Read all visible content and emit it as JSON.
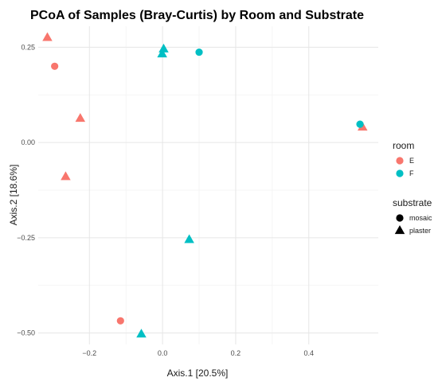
{
  "chart_data": {
    "type": "scatter",
    "title": "PCoA of Samples (Bray-Curtis) by Room and Substrate",
    "xlabel": "Axis.1   [20.5%]",
    "ylabel": "Axis.2   [18.6%]",
    "xlim": [
      -0.34,
      0.59
    ],
    "ylim": [
      -0.53,
      0.305
    ],
    "xticks": [
      -0.2,
      0.0,
      0.2,
      0.4
    ],
    "xtick_labels": [
      "−0.2",
      "0.0",
      "0.2",
      "0.4"
    ],
    "yticks": [
      0.25,
      0.0,
      -0.25,
      -0.5
    ],
    "ytick_labels": [
      "0.25",
      "0.00",
      "−0.25",
      "−0.50"
    ],
    "grid": true,
    "legend_placement": "right",
    "color_legend": {
      "title": "room",
      "entries": [
        {
          "label": "E",
          "color": "#F8766D"
        },
        {
          "label": "F",
          "color": "#00BFC4"
        }
      ]
    },
    "shape_legend": {
      "title": "substrate",
      "entries": [
        {
          "label": "mosaic",
          "shape": "circle"
        },
        {
          "label": "plaster",
          "shape": "triangle"
        }
      ]
    },
    "points": [
      {
        "x": -0.315,
        "y": 0.275,
        "room": "E",
        "substrate": "plaster"
      },
      {
        "x": -0.295,
        "y": 0.2,
        "room": "E",
        "substrate": "mosaic"
      },
      {
        "x": -0.225,
        "y": 0.063,
        "room": "E",
        "substrate": "plaster"
      },
      {
        "x": -0.265,
        "y": -0.09,
        "room": "E",
        "substrate": "plaster"
      },
      {
        "x": -0.115,
        "y": -0.468,
        "room": "E",
        "substrate": "mosaic"
      },
      {
        "x": 0.547,
        "y": 0.04,
        "room": "E",
        "substrate": "plaster"
      },
      {
        "x": 0.003,
        "y": 0.245,
        "room": "F",
        "substrate": "plaster"
      },
      {
        "x": -0.001,
        "y": 0.232,
        "room": "F",
        "substrate": "plaster"
      },
      {
        "x": 0.1,
        "y": 0.237,
        "room": "F",
        "substrate": "mosaic"
      },
      {
        "x": 0.54,
        "y": 0.048,
        "room": "F",
        "substrate": "mosaic"
      },
      {
        "x": 0.073,
        "y": -0.255,
        "room": "F",
        "substrate": "plaster"
      },
      {
        "x": -0.058,
        "y": -0.503,
        "room": "F",
        "substrate": "plaster"
      }
    ]
  }
}
